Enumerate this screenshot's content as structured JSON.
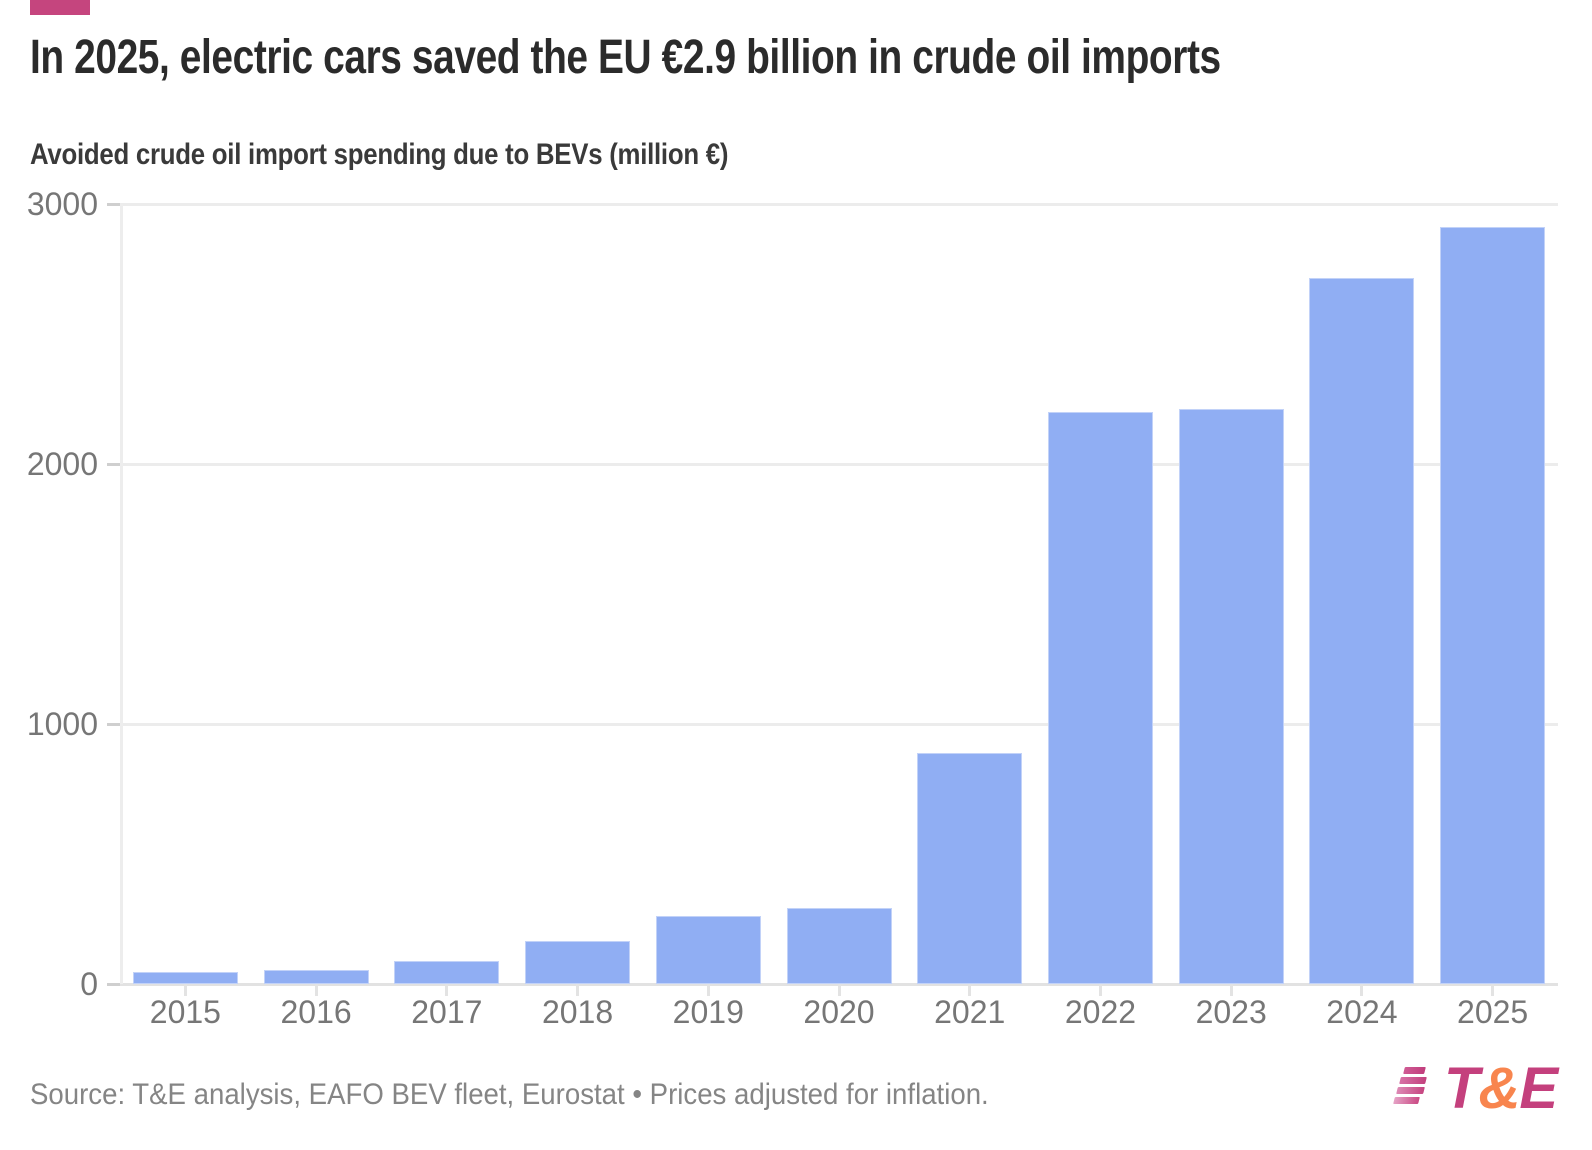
{
  "page": {
    "accent_color": "#C5457E",
    "background": "#ffffff"
  },
  "header": {
    "title": "In 2025, electric cars saved the EU €2.9 billion in crude oil imports",
    "subtitle": "Avoided crude oil import spending due to BEVs (million €)"
  },
  "chart_data": {
    "type": "bar",
    "title": "In 2025, electric cars saved the EU €2.9 billion in crude oil imports",
    "subtitle": "Avoided crude oil import spending due to BEVs (million €)",
    "categories": [
      "2015",
      "2016",
      "2017",
      "2018",
      "2019",
      "2020",
      "2021",
      "2022",
      "2023",
      "2024",
      "2025"
    ],
    "values": [
      45,
      52,
      88,
      165,
      262,
      292,
      890,
      2200,
      2210,
      2715,
      2910
    ],
    "unit": "million €",
    "xlabel": "",
    "ylabel": "Avoided crude oil import spending due to BEVs (million €)",
    "ylim": [
      0,
      3000
    ],
    "yticks": [
      0,
      1000,
      2000,
      3000
    ],
    "grid": true,
    "legend": false,
    "bar_color": "#90AEF3"
  },
  "footer": {
    "source": "Source: T&E analysis, EAFO BEV fleet, Eurostat • Prices adjusted for inflation.",
    "logo": {
      "t": "T",
      "amp": "&",
      "e": "E",
      "magenta": "#C4407D",
      "orange": "#F8854E"
    }
  }
}
